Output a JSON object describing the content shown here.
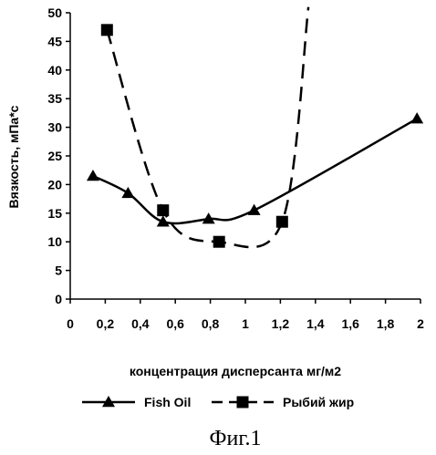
{
  "chart_data": {
    "type": "line",
    "xlabel": "концентрация дисперсанта мг/м2",
    "ylabel": "Вязкость, мПа*с",
    "xlim": [
      0,
      2
    ],
    "ylim": [
      0,
      50
    ],
    "x_ticks": [
      "0",
      "0,2",
      "0,4",
      "0,6",
      "0,8",
      "1",
      "1,2",
      "1,4",
      "1,6",
      "1,8",
      "2"
    ],
    "y_ticks": [
      "0",
      "5",
      "10",
      "15",
      "20",
      "25",
      "30",
      "35",
      "40",
      "45",
      "50"
    ],
    "grid": false,
    "legend_position": "bottom",
    "series": [
      {
        "name": "Fish Oil",
        "marker": "triangle",
        "line_style": "solid",
        "color": "#000000",
        "x": [
          0.13,
          0.33,
          0.53,
          0.79,
          1.05,
          1.98
        ],
        "y": [
          21.5,
          18.5,
          13.5,
          14,
          15.5,
          31.5
        ]
      },
      {
        "name": "Рыбий жир",
        "marker": "square",
        "line_style": "dashed",
        "color": "#000000",
        "x": [
          0.21,
          0.53,
          0.85,
          1.21
        ],
        "y": [
          47,
          15.5,
          10,
          13.5
        ],
        "extension_to": [
          1.36,
          51
        ]
      }
    ]
  },
  "caption": "Фиг.1"
}
